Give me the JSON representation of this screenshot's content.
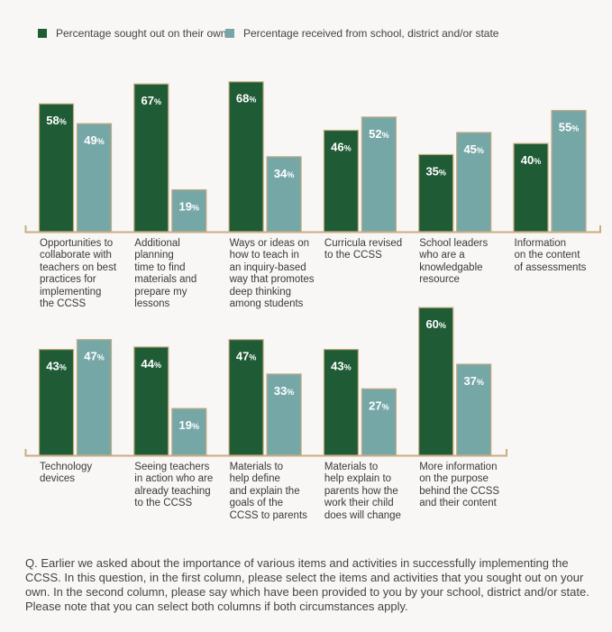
{
  "chart_data": [
    {
      "type": "bar",
      "legend_placement": "top-left",
      "grid": false,
      "ylim": [
        0,
        100
      ],
      "categories": [
        "Opportunities to collaborate with teachers on best practices for implementing the CCSS",
        "Additional planning time to find materials and prepare my lessons",
        "Ways or ideas on how to teach in an inquiry-based way that promotes deep thinking among students",
        "Curricula revised to the CCSS",
        "School leaders who are a knowledgable resource",
        "Information on the content of assessments"
      ],
      "category_lines": [
        [
          "Opportunities to",
          "collaborate with",
          "teachers on best",
          "practices for",
          "implementing",
          "the CCSS"
        ],
        [
          "Additional",
          "planning",
          "time to find",
          "materials and",
          "prepare my",
          "lessons"
        ],
        [
          "Ways or ideas on",
          "how to teach in",
          "an inquiry-based",
          "way that promotes",
          "deep thinking",
          "among students"
        ],
        [
          "Curricula revised",
          "to the CCSS"
        ],
        [
          "School leaders",
          "who are a",
          "knowledgable",
          "resource"
        ],
        [
          "Information",
          "on the content",
          "of assessments"
        ]
      ],
      "series": [
        {
          "name": "Percentage sought out on their own",
          "values": [
            58,
            67,
            68,
            46,
            35,
            40
          ]
        },
        {
          "name": "Percentage received from school, district and/or state",
          "values": [
            49,
            19,
            34,
            52,
            45,
            55
          ]
        }
      ]
    },
    {
      "type": "bar",
      "grid": false,
      "ylim": [
        0,
        100
      ],
      "categories": [
        "Technology devices",
        "Seeing teachers in action who are already teaching to the CCSS",
        "Materials to help define and explain the goals of the CCSS to parents",
        "Materials to help explain to parents how the work their child does will change",
        "More information on the purpose behind the CCSS and their content"
      ],
      "category_lines": [
        [
          "Technology",
          "devices"
        ],
        [
          "Seeing teachers",
          "in action who are",
          "already teaching",
          "to the CCSS"
        ],
        [
          "Materials to",
          "help define",
          "and explain the",
          "goals of the",
          "CCSS to parents"
        ],
        [
          "Materials to",
          "help explain to",
          "parents how the",
          "work their child",
          "does will change"
        ],
        [
          "More information",
          "on the purpose",
          "behind the CCSS",
          "and their content"
        ]
      ],
      "series": [
        {
          "name": "Percentage sought out on their own",
          "values": [
            43,
            44,
            47,
            43,
            60
          ]
        },
        {
          "name": "Percentage received from school, district and/or state",
          "values": [
            47,
            19,
            33,
            27,
            37
          ]
        }
      ]
    }
  ],
  "legend": [
    {
      "label": "Percentage sought out on their own",
      "color": "#1f5c36"
    },
    {
      "label": "Percentage received from school, district and/or state",
      "color": "#76a7a7"
    }
  ],
  "colors": {
    "dark": "#1f5c36",
    "light": "#76a7a7",
    "border": "#c2aa80",
    "axis": "#c9ad82"
  },
  "question": "Q. Earlier we asked about the importance of various items and activities in successfully implementing the CCSS. In this question, in the first column, please select the items and activities that you sought out on your own. In the second column, please say which have been provided to you by your school, district and/or state. Please note that you can select both columns if both circumstances apply."
}
